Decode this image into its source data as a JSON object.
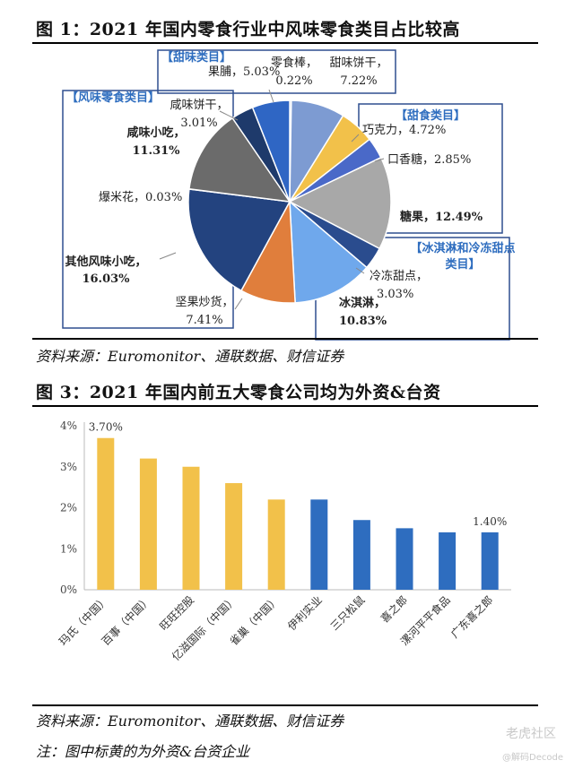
{
  "figure1": {
    "title": "图 1：2021 年国内零食行业中风味零食类目占比较高",
    "source": "资料来源：Euromonitor、通联数据、财信证券"
  },
  "figure3": {
    "title": "图 3：2021 年国内前五大零食公司均为外资&台资",
    "source": "资料来源：Euromonitor、通联数据、财信证券",
    "note": "注：图中标黄的为外资&台资企业"
  },
  "watermark": {
    "line1": "老虎社区",
    "line2": "@解码Decode"
  },
  "colors": {
    "foreign": "#F2C14A",
    "domestic": "#2E6DBF",
    "box": "#2F4F8F"
  },
  "chart_data": [
    {
      "type": "pie",
      "slices": [
        {
          "name": "零食棒",
          "value": 0.22,
          "label": "0.22%",
          "color": "#4E6FB7"
        },
        {
          "name": "甜味饼干",
          "value": 7.22,
          "label": "7.22%",
          "color": "#7D9BD2"
        },
        {
          "name": "巧克力",
          "value": 4.72,
          "label": "4.72%",
          "color": "#F2C14A"
        },
        {
          "name": "口香糖",
          "value": 2.85,
          "label": "2.85%",
          "color": "#4A69C8"
        },
        {
          "name": "糖果",
          "value": 12.49,
          "label": "12.49%",
          "color": "#A8A8A8"
        },
        {
          "name": "冷冻甜点",
          "value": 3.03,
          "label": "3.03%",
          "color": "#2A4C8E"
        },
        {
          "name": "冰淇淋",
          "value": 10.83,
          "label": "10.83%",
          "color": "#6FA8EC"
        },
        {
          "name": "坚果炒货",
          "value": 7.41,
          "label": "7.41%",
          "color": "#E07E3C"
        },
        {
          "name": "其他风味小吃",
          "value": 16.03,
          "label": "16.03%",
          "color": "#23437F"
        },
        {
          "name": "爆米花",
          "value": 0.03,
          "label": "0.03%",
          "color": "#9E9E9E"
        },
        {
          "name": "咸味小吃",
          "value": 11.31,
          "label": "11.31%",
          "color": "#6B6B6B"
        },
        {
          "name": "咸味饼干",
          "value": 3.01,
          "label": "3.01%",
          "color": "#1E3A6B"
        },
        {
          "name": "果脯",
          "value": 5.03,
          "label": "5.03%",
          "color": "#2F66C4"
        }
      ],
      "groups": [
        "【甜味类目】",
        "【甜食类目】",
        "【风味零食类目】",
        "【冰淇淋和冷冻甜点类目】"
      ]
    },
    {
      "type": "bar",
      "categories": [
        "玛氏（中国）",
        "百事（中国）",
        "旺旺控股",
        "亿滋国际（中国）",
        "雀巢（中国）",
        "伊利实业",
        "三只松鼠",
        "喜之郎",
        "漯河平平食品",
        "广东喜之郎"
      ],
      "values": [
        3.7,
        3.2,
        3.0,
        2.6,
        2.2,
        2.2,
        1.7,
        1.5,
        1.4,
        1.4
      ],
      "foreign": [
        true,
        true,
        true,
        true,
        true,
        false,
        false,
        false,
        false,
        false
      ],
      "data_labels": {
        "0": "3.70%",
        "9": "1.40%"
      },
      "yticks": [
        "0%",
        "1%",
        "2%",
        "3%",
        "4%"
      ],
      "ylim": [
        0,
        4
      ],
      "grid": false
    }
  ]
}
